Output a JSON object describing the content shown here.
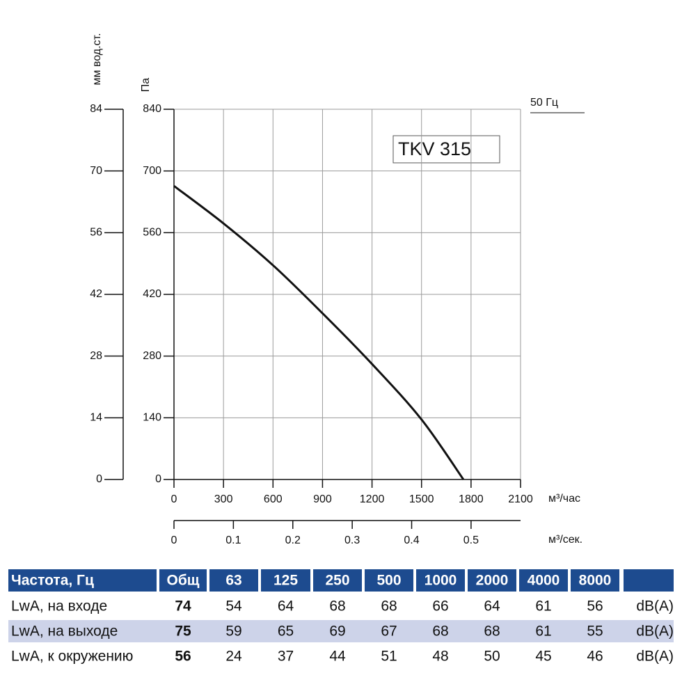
{
  "chart_data": {
    "type": "line",
    "annotation": "TKV 315",
    "frequency_label": "50 Гц",
    "ylabel": "Па",
    "y2label": "мм вод.ст.",
    "xlabel": "м³/час",
    "x2label": "м³/сек.",
    "x": [
      0,
      300,
      600,
      900,
      1200,
      1500,
      1754
    ],
    "series": [
      {
        "name": "TKV 315",
        "color": "#111111",
        "values": [
          666,
          581,
          486,
          377,
          262,
          136,
          0
        ]
      }
    ],
    "xlim": [
      0,
      2100
    ],
    "xticks": [
      0,
      300,
      600,
      900,
      1200,
      1500,
      1800,
      2100
    ],
    "x2lim": [
      0,
      0.5833
    ],
    "x2ticks": [
      0,
      0.1,
      0.2,
      0.3,
      0.4,
      0.5
    ],
    "ylim": [
      0,
      840
    ],
    "yticks": [
      0,
      140,
      280,
      420,
      560,
      700,
      840
    ],
    "y2lim": [
      0,
      84
    ],
    "y2ticks": [
      0,
      14,
      28,
      42,
      56,
      70,
      84
    ],
    "grid": true
  },
  "table": {
    "header": [
      "Частота, Гц",
      "Общ",
      "63",
      "125",
      "250",
      "500",
      "1000",
      "2000",
      "4000",
      "8000"
    ],
    "rows": [
      [
        "LwA, на входе",
        74,
        54,
        64,
        68,
        68,
        66,
        64,
        61,
        56,
        "dB(A)"
      ],
      [
        "LwA, на выходе",
        75,
        59,
        65,
        69,
        67,
        68,
        68,
        61,
        55,
        "dB(A)"
      ],
      [
        "LwA, к окружению",
        56,
        24,
        37,
        44,
        51,
        48,
        50,
        45,
        46,
        "dB(A)"
      ]
    ]
  }
}
